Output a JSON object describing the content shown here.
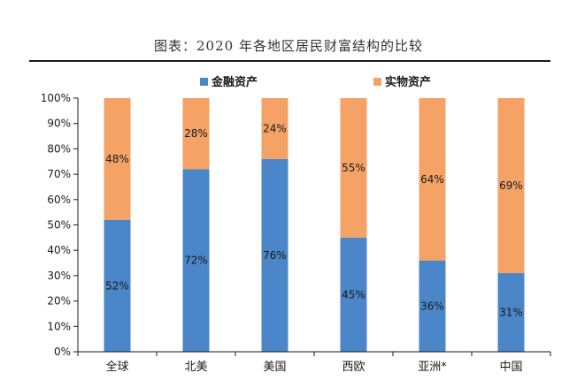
{
  "title": "图表：2020 年各地区居民财富结构的比较",
  "chart_data": {
    "type": "bar",
    "stacked": true,
    "categories": [
      "全球",
      "北美",
      "美国",
      "西欧",
      "亚洲*",
      "中国"
    ],
    "series": [
      {
        "name": "金融资产",
        "values": [
          52,
          72,
          76,
          45,
          36,
          31
        ],
        "color": "#4A86C8",
        "labels": [
          "52%",
          "72%",
          "76%",
          "45%",
          "36%",
          "31%"
        ]
      },
      {
        "name": "实物资产",
        "values": [
          48,
          28,
          24,
          55,
          64,
          69
        ],
        "color": "#F4A266",
        "labels": [
          "48%",
          "28%",
          "24%",
          "55%",
          "64%",
          "69%"
        ]
      }
    ],
    "ylim": [
      0,
      100
    ],
    "yticks": [
      "0%",
      "10%",
      "20%",
      "30%",
      "40%",
      "50%",
      "60%",
      "70%",
      "80%",
      "90%",
      "100%"
    ],
    "legend_position": "top-center",
    "grid": false
  }
}
